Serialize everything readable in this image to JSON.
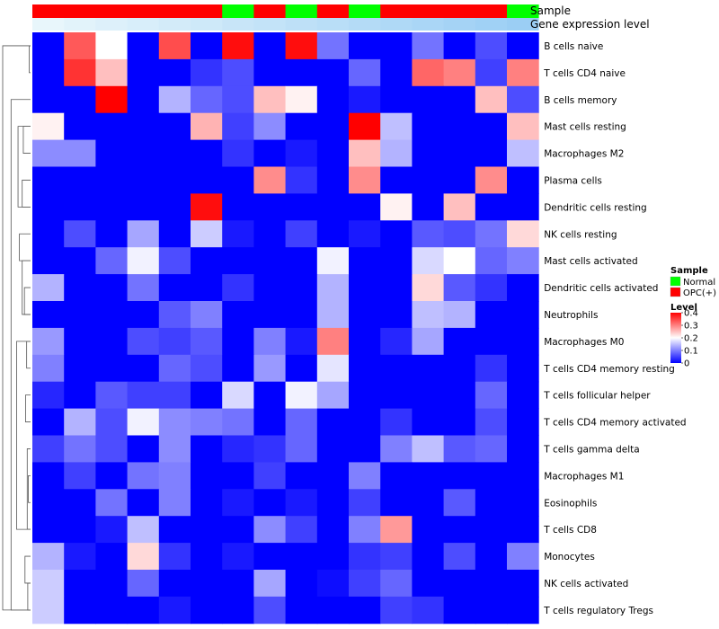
{
  "chart_data": {
    "type": "heatmap",
    "annotation_rows": [
      "Sample",
      "Gene expression level"
    ],
    "sample_annotation": [
      "OPC(+)",
      "OPC(+)",
      "OPC(+)",
      "OPC(+)",
      "OPC(+)",
      "OPC(+)",
      "Normal",
      "OPC(+)",
      "Normal",
      "OPC(+)",
      "Normal",
      "OPC(+)",
      "OPC(+)",
      "OPC(+)",
      "OPC(+)",
      "Normal"
    ],
    "expression_annotation": [
      0.0,
      0.05,
      0.09,
      0.13,
      0.17,
      0.21,
      0.26,
      0.3,
      0.34,
      0.38,
      0.42,
      0.46,
      0.5,
      0.54,
      0.58,
      0.62
    ],
    "rows": [
      "B cells naive",
      "T cells CD4 naive",
      "B cells memory",
      "Mast cells resting",
      "Macrophages M2",
      "Plasma cells",
      "Dendritic cells resting",
      "NK cells resting",
      "Mast cells activated",
      "Dendritic cells activated",
      "Neutrophils",
      "Macrophages M0",
      "T cells CD4 memory resting",
      "T cells follicular helper",
      "T cells CD4 memory activated",
      "T cells gamma delta",
      "Macrophages M1",
      "Eosinophils",
      "T cells CD8",
      "Monocytes",
      "NK cells activated",
      "T cells regulatory  Tregs"
    ],
    "values": [
      [
        0.0,
        0.33,
        0.2,
        0.0,
        0.34,
        0.0,
        0.39,
        0.0,
        0.39,
        0.09,
        0.0,
        0.0,
        0.09,
        0.0,
        0.06,
        0.0
      ],
      [
        0.0,
        0.36,
        0.25,
        0.0,
        0.0,
        0.04,
        0.06,
        0.0,
        0.0,
        0.0,
        0.08,
        0.0,
        0.32,
        0.3,
        0.05,
        0.3
      ],
      [
        0.0,
        0.0,
        0.4,
        0.0,
        0.14,
        0.08,
        0.06,
        0.25,
        0.21,
        0.0,
        0.02,
        0.0,
        0.0,
        0.0,
        0.25,
        0.06
      ],
      [
        0.21,
        0.0,
        0.0,
        0.0,
        0.0,
        0.26,
        0.05,
        0.11,
        0.0,
        0.0,
        0.4,
        0.15,
        0.0,
        0.0,
        0.0,
        0.25
      ],
      [
        0.11,
        0.11,
        0.0,
        0.0,
        0.0,
        0.0,
        0.04,
        0.0,
        0.02,
        0.0,
        0.25,
        0.14,
        0.0,
        0.0,
        0.0,
        0.15
      ],
      [
        0.0,
        0.0,
        0.0,
        0.0,
        0.0,
        0.0,
        0.0,
        0.29,
        0.04,
        0.0,
        0.29,
        0.0,
        0.0,
        0.0,
        0.29,
        0.0
      ],
      [
        0.0,
        0.0,
        0.0,
        0.0,
        0.0,
        0.39,
        0.0,
        0.0,
        0.0,
        0.0,
        0.0,
        0.21,
        0.0,
        0.25,
        0.0,
        0.0
      ],
      [
        0.0,
        0.06,
        0.0,
        0.13,
        0.0,
        0.16,
        0.02,
        0.0,
        0.05,
        0.0,
        0.02,
        0.0,
        0.07,
        0.06,
        0.09,
        0.23
      ],
      [
        0.0,
        0.0,
        0.08,
        0.19,
        0.06,
        0.0,
        0.0,
        0.0,
        0.0,
        0.19,
        0.0,
        0.0,
        0.17,
        0.2,
        0.08,
        0.1
      ],
      [
        0.14,
        0.0,
        0.0,
        0.09,
        0.0,
        0.0,
        0.04,
        0.0,
        0.0,
        0.14,
        0.0,
        0.0,
        0.23,
        0.07,
        0.04,
        0.0
      ],
      [
        0.0,
        0.0,
        0.0,
        0.0,
        0.07,
        0.1,
        0.0,
        0.0,
        0.0,
        0.14,
        0.0,
        0.0,
        0.15,
        0.14,
        0.0,
        0.0
      ],
      [
        0.12,
        0.0,
        0.0,
        0.06,
        0.05,
        0.07,
        0.0,
        0.1,
        0.02,
        0.3,
        0.0,
        0.03,
        0.13,
        0.0,
        0.0,
        0.0
      ],
      [
        0.1,
        0.0,
        0.0,
        0.0,
        0.08,
        0.06,
        0.0,
        0.12,
        0.0,
        0.18,
        0.0,
        0.0,
        0.0,
        0.0,
        0.04,
        0.0
      ],
      [
        0.03,
        0.0,
        0.07,
        0.05,
        0.05,
        0.0,
        0.17,
        0.0,
        0.19,
        0.13,
        0.0,
        0.0,
        0.0,
        0.0,
        0.08,
        0.0
      ],
      [
        0.0,
        0.14,
        0.06,
        0.19,
        0.11,
        0.1,
        0.09,
        0.0,
        0.08,
        0.0,
        0.0,
        0.04,
        0.0,
        0.0,
        0.06,
        0.0
      ],
      [
        0.05,
        0.09,
        0.06,
        0.0,
        0.11,
        0.0,
        0.03,
        0.04,
        0.08,
        0.0,
        0.0,
        0.1,
        0.15,
        0.07,
        0.08,
        0.0
      ],
      [
        0.0,
        0.05,
        0.0,
        0.09,
        0.1,
        0.0,
        0.0,
        0.05,
        0.0,
        0.0,
        0.1,
        0.0,
        0.0,
        0.0,
        0.0,
        0.0
      ],
      [
        0.0,
        0.0,
        0.09,
        0.0,
        0.1,
        0.0,
        0.02,
        0.0,
        0.02,
        0.0,
        0.05,
        0.0,
        0.0,
        0.07,
        0.0,
        0.0
      ],
      [
        0.0,
        0.0,
        0.02,
        0.15,
        0.0,
        0.0,
        0.0,
        0.11,
        0.05,
        0.0,
        0.1,
        0.28,
        0.0,
        0.0,
        0.0,
        0.0
      ],
      [
        0.14,
        0.02,
        0.0,
        0.23,
        0.04,
        0.0,
        0.02,
        0.0,
        0.0,
        0.0,
        0.04,
        0.05,
        0.0,
        0.06,
        0.0,
        0.1
      ],
      [
        0.16,
        0.0,
        0.0,
        0.08,
        0.0,
        0.0,
        0.0,
        0.13,
        0.0,
        0.01,
        0.05,
        0.08,
        0.0,
        0.0,
        0.0,
        0.0
      ],
      [
        0.16,
        0.0,
        0.0,
        0.0,
        0.02,
        0.0,
        0.0,
        0.06,
        0.0,
        0.0,
        0.0,
        0.05,
        0.04,
        0.0,
        0.0,
        0.0
      ]
    ],
    "color_range": [
      0,
      0.4
    ],
    "colors": {
      "low": "#0000ff",
      "mid": "#ffffff",
      "high": "#ff0000",
      "normal": "#00ff00",
      "opc": "#ff0000",
      "expr_low": "#e8f6fb",
      "expr_high": "#6cb6f0"
    },
    "legend": {
      "sample_title": "Sample",
      "sample_items": [
        {
          "label": "Normal",
          "color": "#00ff00"
        },
        {
          "label": "OPC(+)",
          "color": "#ff0000"
        }
      ],
      "level_title": "Level",
      "level_ticks": [
        0.4,
        0.3,
        0.2,
        0.1,
        0
      ]
    },
    "dendrogram": [
      [
        0,
        1,
        0.05
      ],
      [
        16,
        17,
        0.08
      ],
      [
        15,
        18,
        0.12
      ],
      [
        13,
        14,
        0.18
      ],
      [
        19,
        20,
        0.2
      ],
      [
        20,
        21,
        0.1
      ],
      [
        11,
        12,
        0.14
      ],
      [
        9,
        10,
        0.22
      ],
      [
        8,
        10,
        0.3
      ],
      [
        3,
        4,
        0.26
      ],
      [
        5,
        6,
        0.3
      ],
      [
        7,
        8,
        0.4
      ],
      [
        3,
        6,
        0.45
      ],
      [
        11,
        18,
        0.5
      ],
      [
        2,
        21,
        0.7
      ],
      [
        0,
        21,
        1.0
      ]
    ]
  }
}
